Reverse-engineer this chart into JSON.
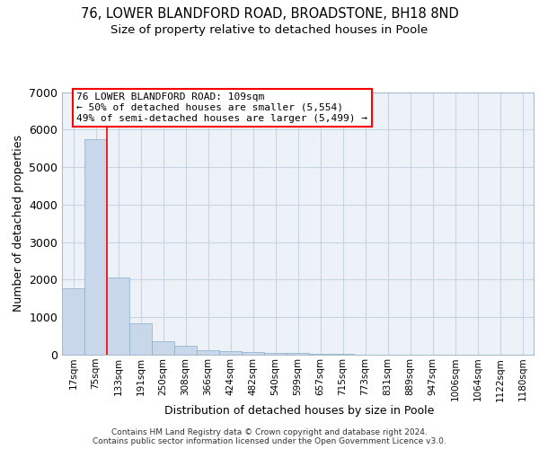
{
  "title1": "76, LOWER BLANDFORD ROAD, BROADSTONE, BH18 8ND",
  "title2": "Size of property relative to detached houses in Poole",
  "xlabel": "Distribution of detached houses by size in Poole",
  "ylabel": "Number of detached properties",
  "bar_labels": [
    "17sqm",
    "75sqm",
    "133sqm",
    "191sqm",
    "250sqm",
    "308sqm",
    "366sqm",
    "424sqm",
    "482sqm",
    "540sqm",
    "599sqm",
    "657sqm",
    "715sqm",
    "773sqm",
    "831sqm",
    "889sqm",
    "947sqm",
    "1006sqm",
    "1064sqm",
    "1122sqm",
    "1180sqm"
  ],
  "bar_values": [
    1780,
    5750,
    2050,
    830,
    370,
    230,
    115,
    100,
    60,
    50,
    40,
    35,
    30,
    0,
    0,
    0,
    0,
    0,
    0,
    0,
    0
  ],
  "bar_color": "#c8d8ea",
  "bar_edge_color": "#8aaec8",
  "grid_color": "#c8d4e4",
  "background_color": "#edf2f8",
  "annotation_line1": "76 LOWER BLANDFORD ROAD: 109sqm",
  "annotation_line2": "← 50% of detached houses are smaller (5,554)",
  "annotation_line3": "49% of semi-detached houses are larger (5,499) →",
  "red_line_index": 1,
  "ylim": [
    0,
    7000
  ],
  "yticks": [
    0,
    1000,
    2000,
    3000,
    4000,
    5000,
    6000,
    7000
  ],
  "footer1": "Contains HM Land Registry data © Crown copyright and database right 2024.",
  "footer2": "Contains public sector information licensed under the Open Government Licence v3.0."
}
